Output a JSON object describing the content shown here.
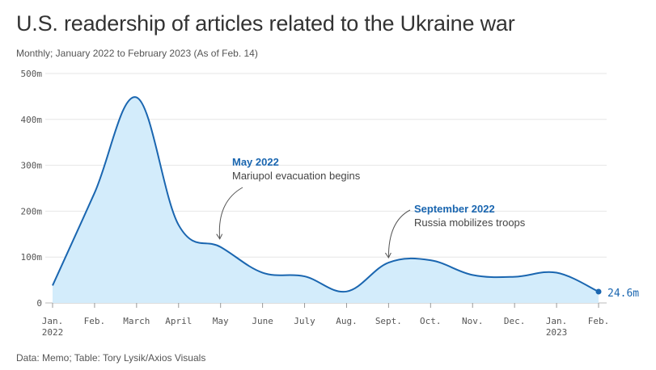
{
  "header": {
    "title": "U.S. readership of articles related to the Ukraine war",
    "subtitle": "Monthly; January 2022 to February 2023 (As of Feb. 14)"
  },
  "footer": {
    "source": "Data: Memo; Table: Tory Lysik/Axios Visuals"
  },
  "chart_data": {
    "type": "area",
    "title": "U.S. readership of articles related to the Ukraine war",
    "subtitle": "Monthly; January 2022 to February 2023 (As of Feb. 14)",
    "x": [
      "Jan. 2022",
      "Feb.",
      "March",
      "April",
      "May",
      "June",
      "July",
      "Aug.",
      "Sept.",
      "Oct.",
      "Nov.",
      "Dec.",
      "Jan. 2023",
      "Feb."
    ],
    "x_labels": [
      {
        "line1": "Jan.",
        "line2": "2022"
      },
      {
        "line1": "Feb.",
        "line2": ""
      },
      {
        "line1": "March",
        "line2": ""
      },
      {
        "line1": "April",
        "line2": ""
      },
      {
        "line1": "May",
        "line2": ""
      },
      {
        "line1": "June",
        "line2": ""
      },
      {
        "line1": "July",
        "line2": ""
      },
      {
        "line1": "Aug.",
        "line2": ""
      },
      {
        "line1": "Sept.",
        "line2": ""
      },
      {
        "line1": "Oct.",
        "line2": ""
      },
      {
        "line1": "Nov.",
        "line2": ""
      },
      {
        "line1": "Dec.",
        "line2": ""
      },
      {
        "line1": "Jan.",
        "line2": "2023"
      },
      {
        "line1": "Feb.",
        "line2": ""
      }
    ],
    "series": [
      {
        "values": [
          38,
          240,
          448,
          170,
          122,
          66,
          58,
          25,
          88,
          93,
          61,
          57,
          66,
          24.6
        ]
      }
    ],
    "ylim": [
      0,
      500
    ],
    "yticks": [
      0,
      100,
      200,
      300,
      400,
      500
    ],
    "ytick_labels": [
      "0",
      "100m",
      "200m",
      "300m",
      "400m",
      "500m"
    ],
    "grid": true,
    "end_label": "24.6m",
    "annotations": [
      {
        "index": 4,
        "title": "May 2022",
        "text": "Mariupol evacuation begins"
      },
      {
        "index": 8,
        "title": "September 2022",
        "text": "Russia mobilizes troops"
      }
    ],
    "colors": {
      "line": "#1a66b0",
      "fill": "#d3ecfb",
      "grid": "#e6e6e6",
      "annotation_title": "#1a66b0",
      "arrow": "#555555"
    }
  }
}
